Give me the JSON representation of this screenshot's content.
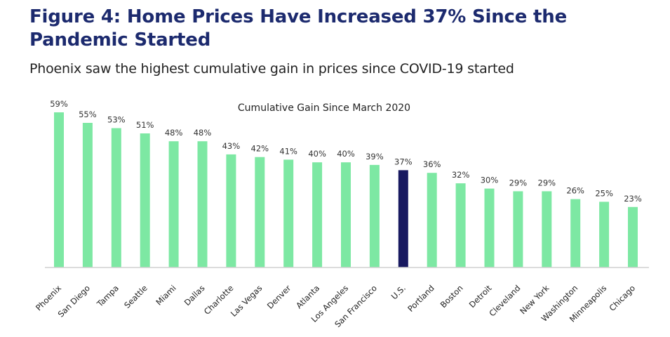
{
  "figure": {
    "title": "Figure 4: Home Prices Have Increased 37% Since the Pandemic Started",
    "subtitle": "Phoenix saw the highest cumulative gain in prices since COVID-19 started"
  },
  "colors": {
    "bar": "#7de8a3",
    "highlight": "#181960",
    "axis": "#d0d0d0",
    "text": "#333333"
  },
  "chart_data": {
    "type": "bar",
    "title": "Cumulative Gain Since March 2020",
    "xlabel": "",
    "ylabel": "",
    "ylim": [
      0,
      59
    ],
    "grid": false,
    "highlight_category": "U.S.",
    "categories": [
      "Phoenix",
      "San Diego",
      "Tampa",
      "Seattle",
      "Miami",
      "Dallas",
      "Charlotte",
      "Las Vegas",
      "Denver",
      "Atlanta",
      "Los Angeles",
      "San Francisco",
      "U.S.",
      "Portland",
      "Boston",
      "Detroit",
      "Cleveland",
      "New York",
      "Washington",
      "Minneapolis",
      "Chicago"
    ],
    "values": [
      59,
      55,
      53,
      51,
      48,
      48,
      43,
      42,
      41,
      40,
      40,
      39,
      37,
      36,
      32,
      30,
      29,
      29,
      26,
      25,
      23
    ],
    "labels": [
      "59%",
      "55%",
      "53%",
      "51%",
      "48%",
      "48%",
      "43%",
      "42%",
      "41%",
      "40%",
      "40%",
      "39%",
      "37%",
      "36%",
      "32%",
      "30%",
      "29%",
      "29%",
      "26%",
      "25%",
      "23%"
    ]
  }
}
